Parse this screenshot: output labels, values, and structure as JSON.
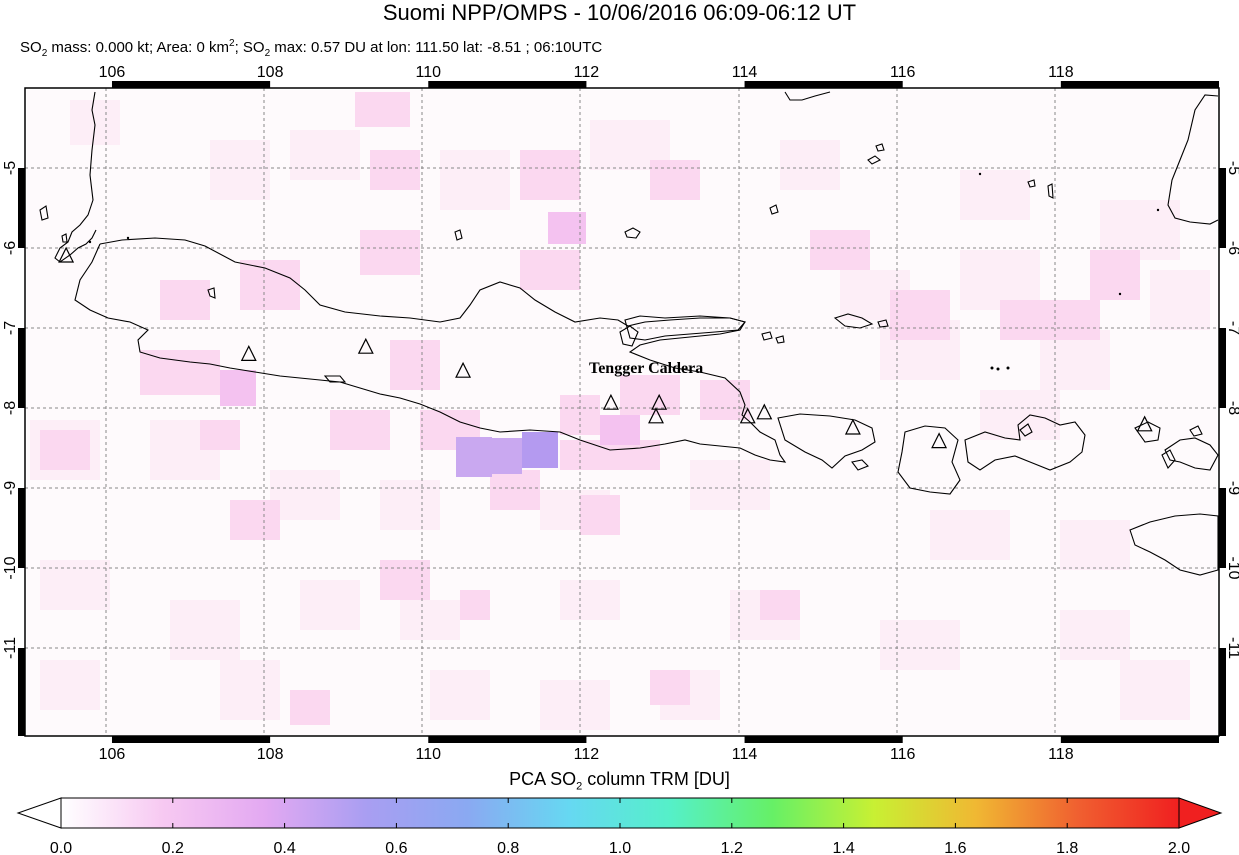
{
  "title": {
    "platform": "Suomi NPP/OMPS",
    "separator": " - ",
    "datetime": "10/06/2016 06:09-06:12 UT"
  },
  "subtitle": {
    "mass_label": "SO",
    "mass_sub": "2",
    "mass_text": " mass: 0.000 kt; Area: 0 km",
    "area_sup": "2",
    "max_label": "; SO",
    "max_sub": "2",
    "max_text": " max: 0.57 DU at lon: 111.50 lat: -8.51 ; 06:10UTC"
  },
  "map": {
    "lon_ticks": [
      "106",
      "108",
      "110",
      "112",
      "114",
      "116",
      "118"
    ],
    "lat_ticks": [
      "-5",
      "-6",
      "-7",
      "-8",
      "-9",
      "-10",
      "-11"
    ],
    "lon_range": [
      104.9,
      120.0
    ],
    "lat_range": [
      -4.0,
      -12.1
    ],
    "volcano_label": "Tengger Caldera",
    "volcanoes": [
      {
        "lon": 105.42,
        "lat": -6.1
      },
      {
        "lon": 107.73,
        "lat": -7.33
      },
      {
        "lon": 109.21,
        "lat": -7.24
      },
      {
        "lon": 110.44,
        "lat": -7.54
      },
      {
        "lon": 112.31,
        "lat": -7.94
      },
      {
        "lon": 112.92,
        "lat": -7.94
      },
      {
        "lon": 112.88,
        "lat": -8.11
      },
      {
        "lon": 114.04,
        "lat": -8.11
      },
      {
        "lon": 114.25,
        "lat": -8.06
      },
      {
        "lon": 115.37,
        "lat": -8.25
      },
      {
        "lon": 116.46,
        "lat": -8.42
      },
      {
        "lon": 119.06,
        "lat": -8.21
      }
    ],
    "colors": {
      "border": "#000000",
      "grid": "#888888",
      "faint_pink": "#fdeef7",
      "light_pink": "#fbd8f0",
      "pink": "#f4c2f0",
      "lavender": "#c9a8f0",
      "violet": "#b49af0"
    }
  },
  "colorbar": {
    "title_pre": "PCA SO",
    "title_sub": "2",
    "title_post": " column TRM [DU]",
    "ticks": [
      "0.0",
      "0.2",
      "0.4",
      "0.6",
      "0.8",
      "1.0",
      "1.2",
      "1.4",
      "1.6",
      "1.8",
      "2.0"
    ],
    "range": [
      0.0,
      2.0
    ],
    "gradient": [
      "#ffffff",
      "#f7c9f2",
      "#e3a9f2",
      "#a99ef2",
      "#8aa9f2",
      "#66d8f2",
      "#55f0c8",
      "#66f066",
      "#c8f033",
      "#f0b833",
      "#f06030",
      "#f02020"
    ]
  }
}
